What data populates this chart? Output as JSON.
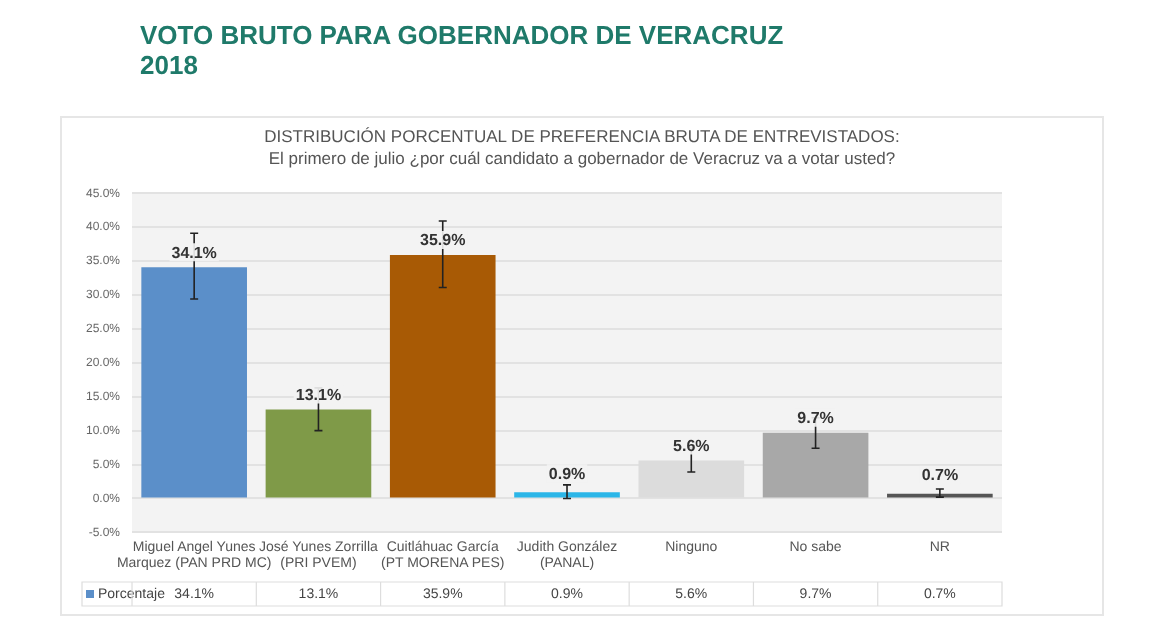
{
  "chart_data": {
    "type": "bar",
    "title": "VOTO BRUTO PARA GOBERNADOR DE VERACRUZ 2018",
    "subtitle": "DISTRIBUCIÓN PORCENTUAL DE PREFERENCIA BRUTA DE ENTREVISTADOS:",
    "annotations": [
      "El primero de julio ¿por cuál candidato a gobernador de Veracruz va a votar usted?"
    ],
    "categories": [
      "Miguel Angel Yunes Marquez (PAN PRD MC)",
      "José Yunes Zorrilla (PRI PVEM)",
      "Cuitláhuac García (PT MORENA PES)",
      "Judith González (PANAL)",
      "Ninguno",
      "No sabe",
      "NR"
    ],
    "series": [
      {
        "name": "Porcentaje",
        "colors": [
          "#5b8fc9",
          "#7f9a48",
          "#a85a05",
          "#2bb6e8",
          "#dcdcdc",
          "#a8a8a8",
          "#555555"
        ],
        "values": [
          34.1,
          13.1,
          35.9,
          0.9,
          5.6,
          9.7,
          0.7
        ],
        "errors": [
          [
            29.4,
            39.1
          ],
          [
            10.0,
            16.3
          ],
          [
            31.1,
            40.9
          ],
          [
            0.0,
            2.0
          ],
          [
            3.9,
            7.5
          ],
          [
            7.4,
            11.9
          ],
          [
            0.2,
            1.4
          ]
        ],
        "value_labels": [
          "34.1%",
          "13.1%",
          "35.9%",
          "0.9%",
          "5.6%",
          "9.7%",
          "0.7%"
        ]
      }
    ],
    "ylim": [
      -5,
      45
    ],
    "yticks": [
      {
        "value": -5,
        "label": "-5.0%"
      },
      {
        "value": 0,
        "label": "0.0%"
      },
      {
        "value": 5,
        "label": "5.0%"
      },
      {
        "value": 10,
        "label": "10.0%"
      },
      {
        "value": 15,
        "label": "15.0%"
      },
      {
        "value": 20,
        "label": "20.0%"
      },
      {
        "value": 25,
        "label": "25.0%"
      },
      {
        "value": 30,
        "label": "30.0%"
      },
      {
        "value": 35,
        "label": "35.0%"
      },
      {
        "value": 40,
        "label": "40.0%"
      },
      {
        "value": 45,
        "label": "45.0%"
      }
    ],
    "grid": "y",
    "legend": "bottom"
  }
}
